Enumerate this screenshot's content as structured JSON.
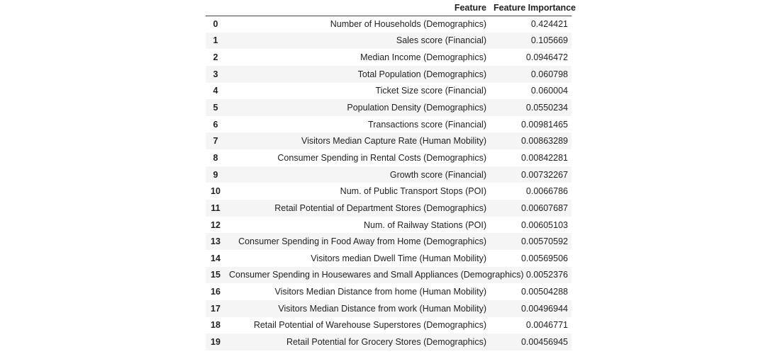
{
  "table": {
    "columns": [
      "Feature",
      "Feature Importance"
    ],
    "rows": [
      [
        0,
        "Number of Households (Demographics)",
        0.424421
      ],
      [
        1,
        "Sales score (Financial)",
        0.105669
      ],
      [
        2,
        "Median Income (Demographics)",
        0.0946472
      ],
      [
        3,
        "Total Population (Demographics)",
        0.060798
      ],
      [
        4,
        "Ticket Size score (Financial)",
        0.060004
      ],
      [
        5,
        "Population Density (Demographics)",
        0.0550234
      ],
      [
        6,
        "Transactions score (Financial)",
        0.00981465
      ],
      [
        7,
        "Visitors Median Capture Rate (Human Mobility)",
        0.00863289
      ],
      [
        8,
        "Consumer Spending in Rental Costs (Demographics)",
        0.00842281
      ],
      [
        9,
        "Growth score (Financial)",
        0.00732267
      ],
      [
        10,
        "Num. of Public Transport Stops (POI)",
        0.0066786
      ],
      [
        11,
        "Retail Potential of Department Stores (Demographics)",
        0.00607687
      ],
      [
        12,
        "Num. of Railway Stations (POI)",
        0.00605103
      ],
      [
        13,
        "Consumer Spending in Food Away from Home (Demographics)",
        0.00570592
      ],
      [
        14,
        "Visitors median Dwell Time (Human Mobility)",
        0.00569506
      ],
      [
        15,
        "Consumer Spending in Housewares and Small Appliances (Demographics)",
        0.0052376
      ],
      [
        16,
        "Visitors Median Distance from home (Human Mobility)",
        0.00504288
      ],
      [
        17,
        "Visitors Median Distance from work (Human Mobility)",
        0.00496944
      ],
      [
        18,
        "Retail Potential of Warehouse Superstores (Demographics)",
        0.0046771
      ],
      [
        19,
        "Retail Potential for Grocery Stores (Demographics)",
        0.00456945
      ]
    ]
  }
}
